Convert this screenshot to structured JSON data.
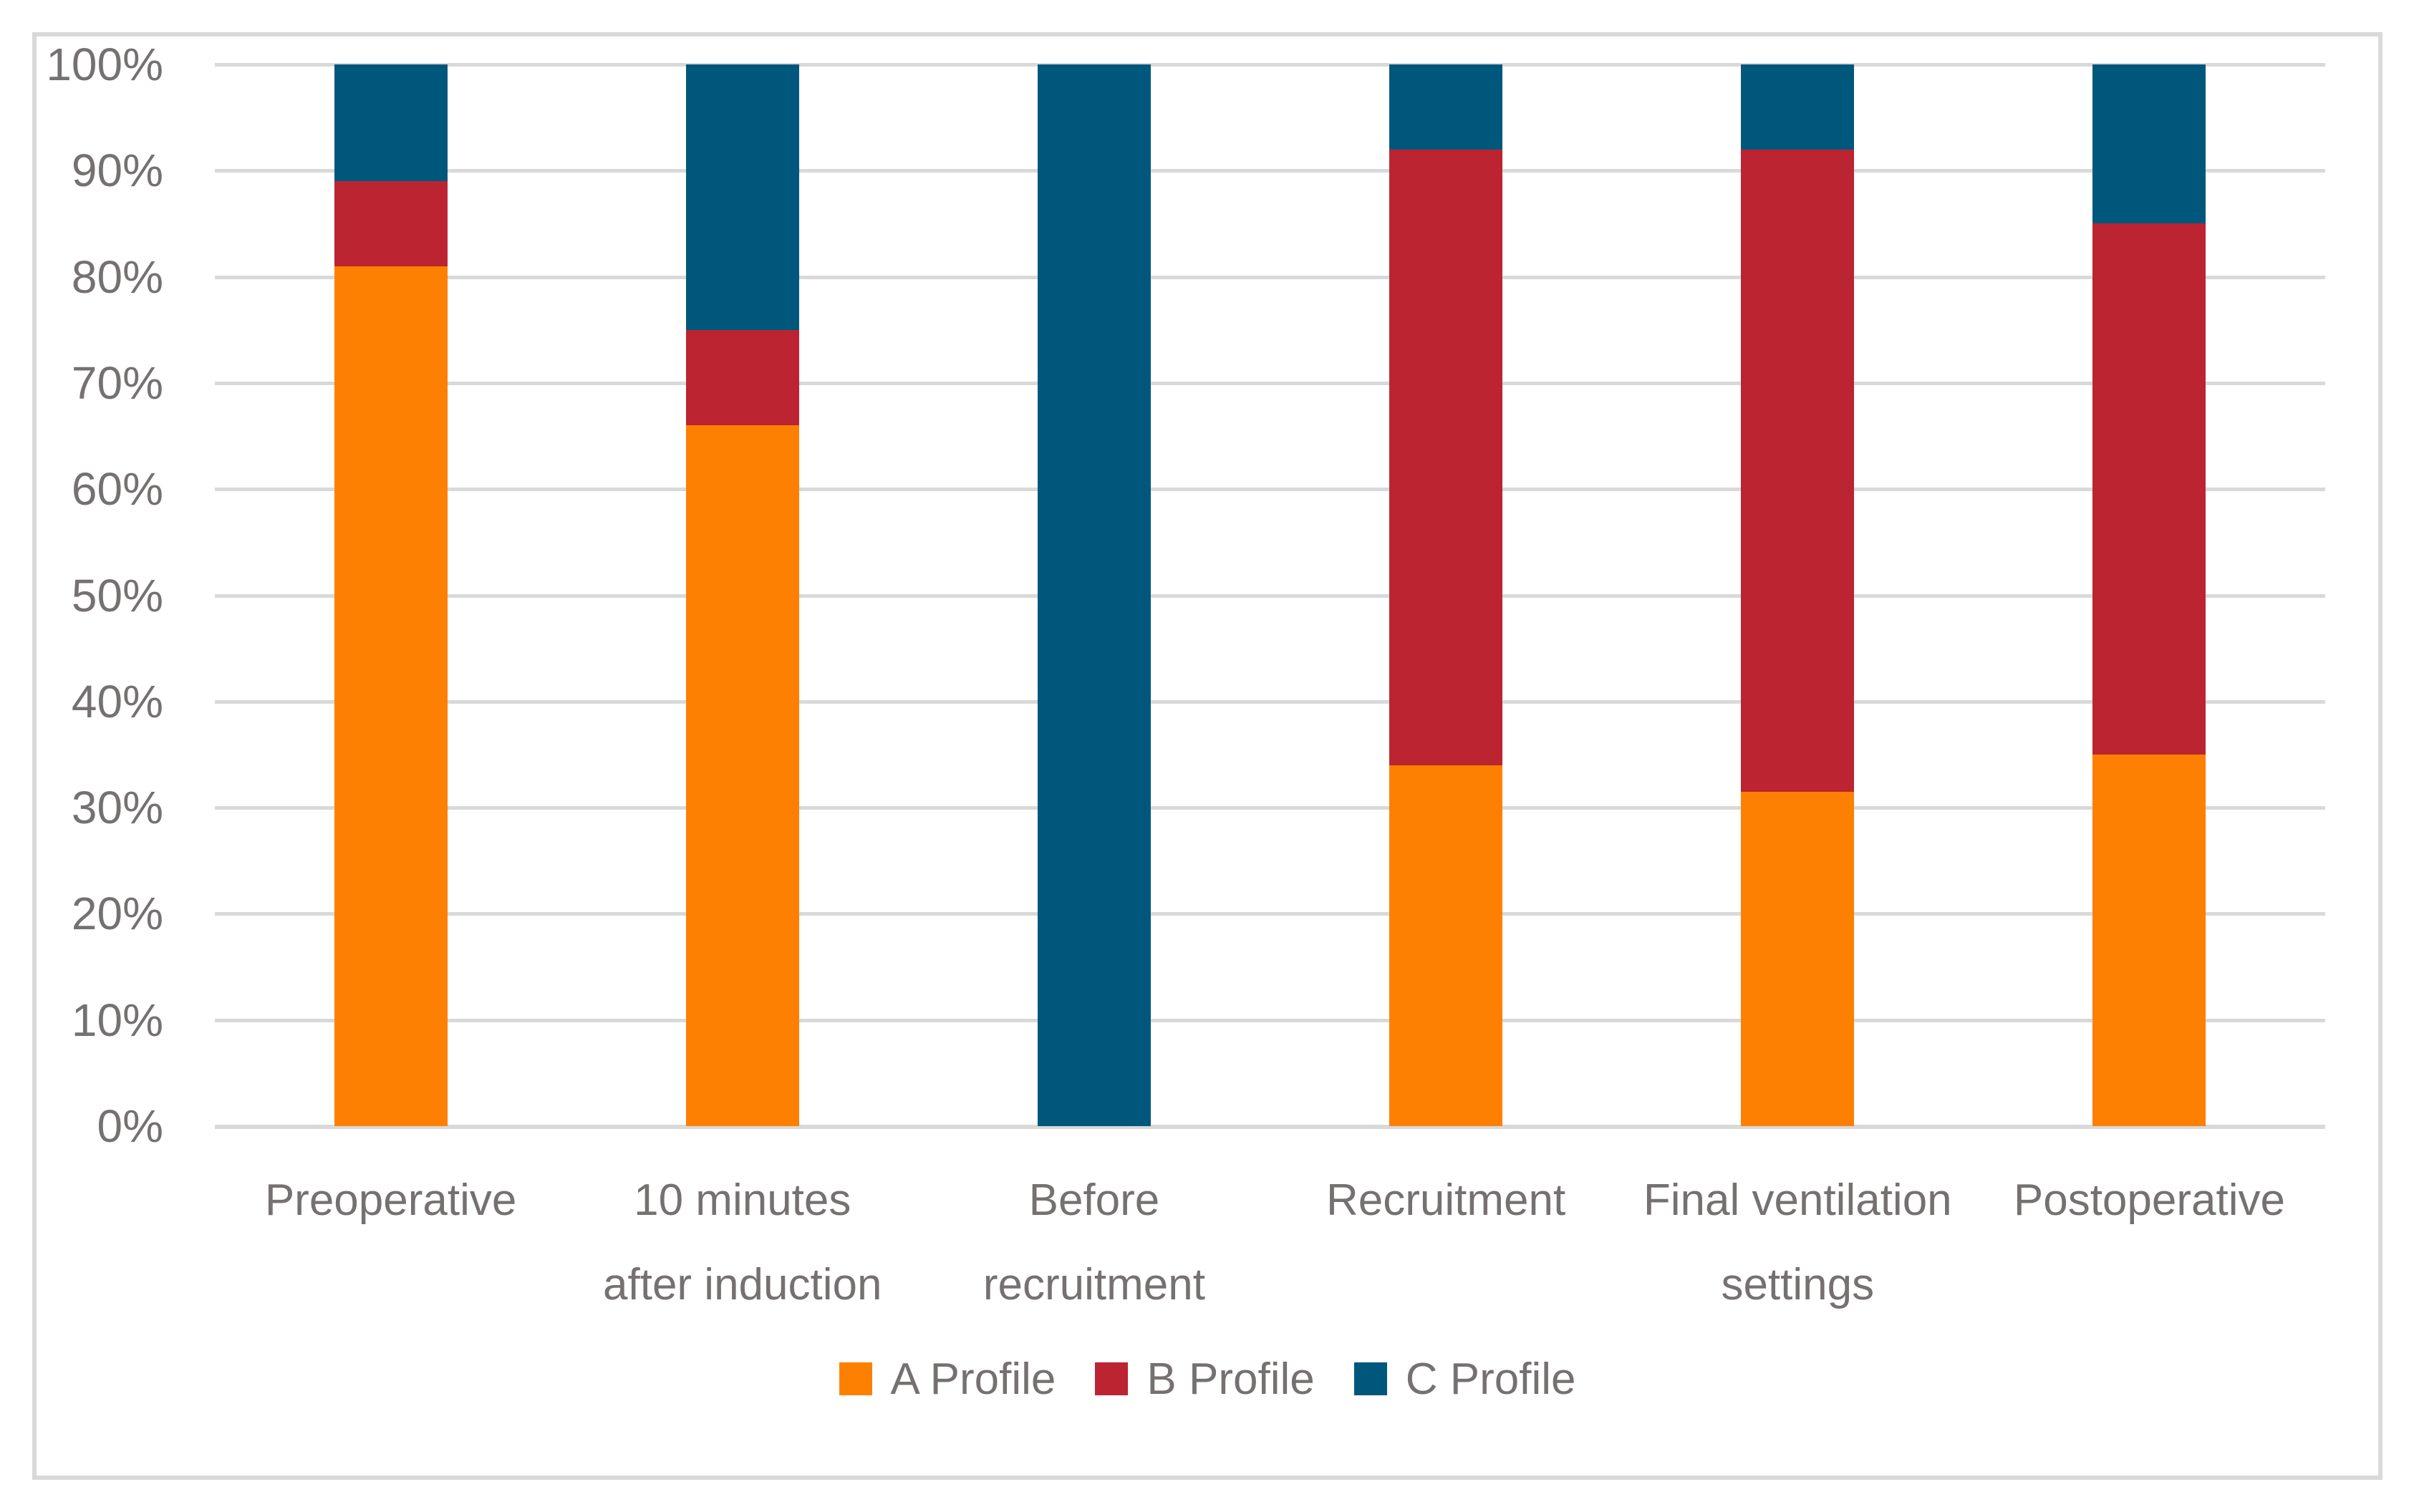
{
  "chart_data": {
    "type": "bar",
    "subtype": "stacked-100-percent-column",
    "title": "",
    "categories": [
      "Preoperative",
      "10 minutes after induction",
      "Before recruitment",
      "Recruitment",
      "Final ventilation settings",
      "Postoperative"
    ],
    "categories_lines": [
      [
        "Preoperative"
      ],
      [
        "10 minutes",
        "after induction"
      ],
      [
        "Before",
        "recruitment"
      ],
      [
        "Recruitment"
      ],
      [
        "Final ventilation",
        "settings"
      ],
      [
        "Postoperative"
      ]
    ],
    "series": [
      {
        "name": "A Profile",
        "color": "#FD8002",
        "values": [
          81,
          66,
          0,
          34,
          31.5,
          35
        ]
      },
      {
        "name": "B Profile",
        "color": "#BB2430",
        "values": [
          8,
          9,
          0,
          58,
          60.5,
          50
        ]
      },
      {
        "name": "C Profile",
        "color": "#00577C",
        "values": [
          11,
          25,
          100,
          8,
          8,
          15
        ]
      }
    ],
    "y_ticks": [
      "100%",
      "90%",
      "80%",
      "70%",
      "60%",
      "50%",
      "40%",
      "30%",
      "20%",
      "10%",
      "0%"
    ],
    "ylim": [
      0,
      100
    ],
    "xlabel": "",
    "ylabel": "",
    "grid": "horizontal",
    "legend_position": "bottom"
  },
  "colors": {
    "background": "#FFFFFF",
    "frame_border": "#D9D9D9",
    "gridline": "#D9D9D9",
    "axis_line": "#D9D9D9",
    "tick_text": "#767171",
    "category_text": "#767171",
    "legend_text": "#767171"
  }
}
